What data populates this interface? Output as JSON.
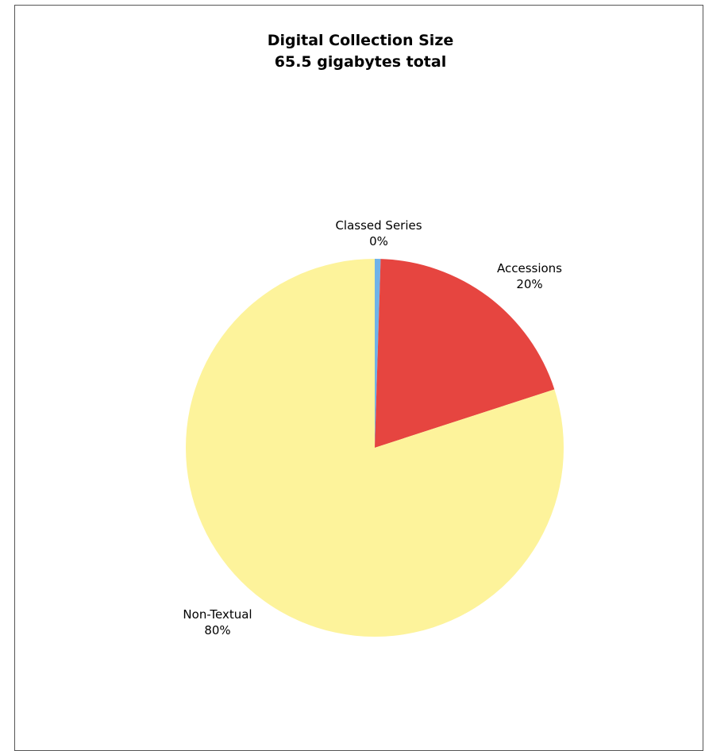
{
  "chart_data": {
    "type": "pie",
    "title": "Digital Collection Size",
    "subtitle": "65.5 gigabytes total",
    "slices": [
      {
        "name": "Classed Series",
        "value": 0.5,
        "label": "0%",
        "color": "#6fb2e8"
      },
      {
        "name": "Accessions",
        "value": 19.5,
        "label": "20%",
        "color": "#e64540"
      },
      {
        "name": "Non-Textual",
        "value": 80,
        "label": "80%",
        "color": "#fdf39b"
      }
    ],
    "legend": "none"
  }
}
